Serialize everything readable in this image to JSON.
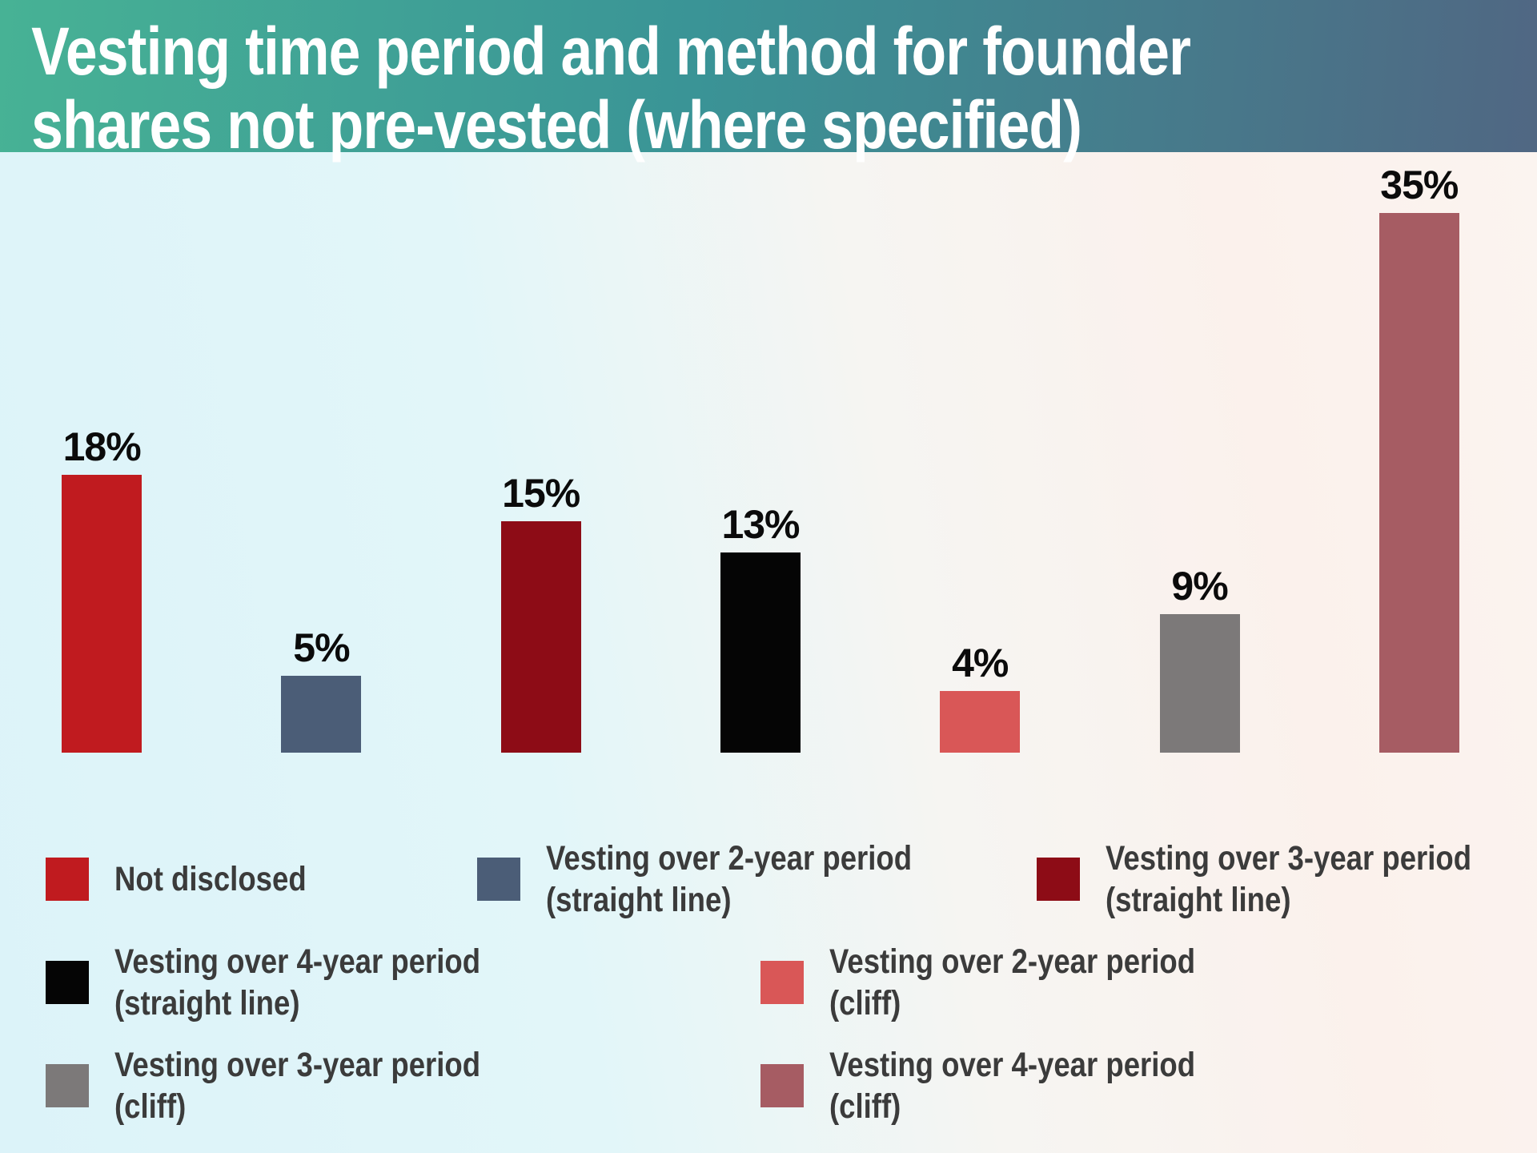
{
  "header": {
    "title": "Vesting time period and method for founder shares not pre-vested (where specified)",
    "title_lines": [
      "Vesting time period and method for founder",
      "shares not pre-vested (where specified)"
    ]
  },
  "chart_data": {
    "type": "bar",
    "title": "Vesting time period and method for founder shares not pre-vested (where specified)",
    "categories": [
      "Not disclosed",
      "Vesting over 2-year period (straight line)",
      "Vesting over 3-year period (straight line)",
      "Vesting over 4-year period (straight line)",
      "Vesting over 2-year period (cliff)",
      "Vesting over 3-year period (cliff)",
      "Vesting over 4-year period (cliff)"
    ],
    "values": [
      18,
      5,
      15,
      13,
      4,
      9,
      35
    ],
    "value_labels": [
      "18%",
      "5%",
      "15%",
      "13%",
      "4%",
      "9%",
      "35%"
    ],
    "colors": [
      "#c01b1f",
      "#4b5d77",
      "#8d0c16",
      "#050505",
      "#d95757",
      "#7c7979",
      "#a65c63"
    ],
    "xlabel": "",
    "ylabel": "",
    "ylim": [
      0,
      36.5
    ],
    "grid": false,
    "axes_visible": false,
    "legend_position": "bottom"
  },
  "legend": {
    "items": [
      {
        "color": "#c01b1f",
        "lines": [
          "Not disclosed",
          ""
        ]
      },
      {
        "color": "#4b5d77",
        "lines": [
          "Vesting over 2-year period",
          "(straight line)"
        ]
      },
      {
        "color": "#8d0c16",
        "lines": [
          "Vesting over 3-year period",
          "(straight line)"
        ]
      },
      {
        "color": "#050505",
        "lines": [
          "Vesting over 4-year period",
          "(straight line)"
        ]
      },
      {
        "color": "#d95757",
        "lines": [
          "Vesting over 2-year period",
          "(cliff)"
        ]
      },
      {
        "color": "#7c7979",
        "lines": [
          "Vesting over 3-year period",
          "(cliff)"
        ]
      },
      {
        "color": "#a65c63",
        "lines": [
          "Vesting over 4-year period",
          "(cliff)"
        ]
      }
    ]
  },
  "style": {
    "header_gradient_left": "#47b295",
    "header_gradient_mid": "#3a9496",
    "header_gradient_right": "#506783",
    "background_left": "#dcf3f9",
    "background_right": "#fbf1ec",
    "title_color": "#ffffff",
    "label_color": "#0b0b0b",
    "legend_text_color": "#3b3b3b"
  }
}
